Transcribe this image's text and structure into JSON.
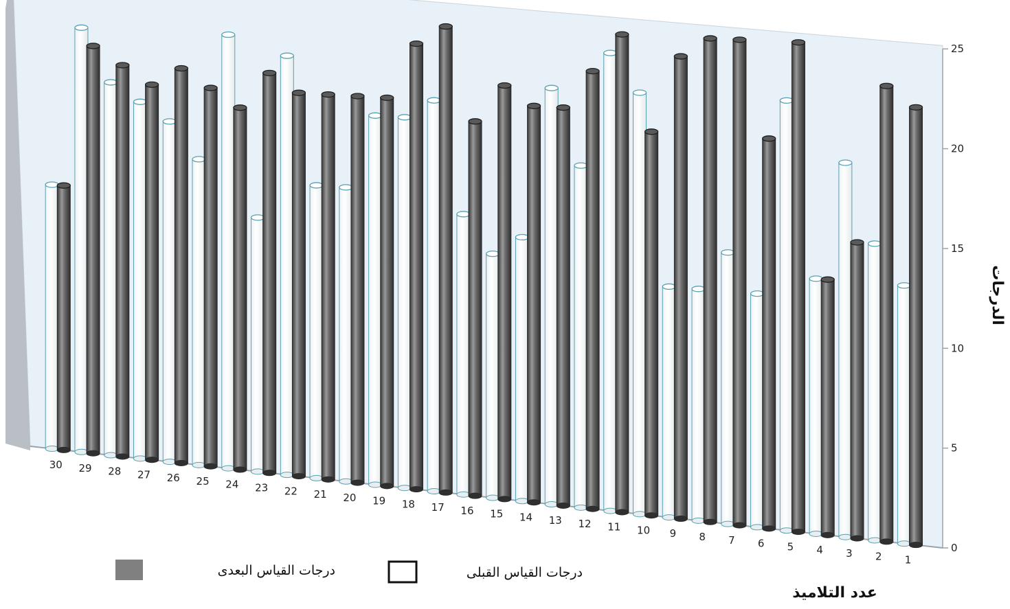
{
  "chart_data": {
    "type": "bar",
    "title": "",
    "xlabel": "عدد التلاميذ",
    "ylabel": "الدرجات",
    "ylim": [
      0,
      25
    ],
    "yticks": [
      "0",
      "5",
      "10",
      "15",
      "20",
      "25"
    ],
    "categories": [
      "1",
      "2",
      "3",
      "4",
      "5",
      "6",
      "7",
      "8",
      "9",
      "10",
      "11",
      "12",
      "13",
      "14",
      "15",
      "16",
      "17",
      "18",
      "19",
      "20",
      "21",
      "22",
      "23",
      "24",
      "25",
      "26",
      "27",
      "28",
      "29",
      "30"
    ],
    "series": [
      {
        "name": "درجات القياس القبلى",
        "color": "#ffffff",
        "values": [
          13,
          15,
          19,
          13,
          22,
          12,
          14,
          12,
          12,
          22,
          24,
          18,
          22,
          14,
          13,
          15,
          21,
          20,
          20,
          16,
          16,
          23,
          14,
          24,
          17,
          19,
          20,
          21,
          24,
          15
        ]
      },
      {
        "name": "درجات القياس البعدى",
        "color": "#666666",
        "values": [
          22,
          23,
          15,
          13,
          25,
          20,
          25,
          25,
          24,
          20,
          25,
          23,
          21,
          21,
          22,
          20,
          25,
          24,
          21,
          21,
          21,
          21,
          22,
          20,
          21,
          22,
          21,
          22,
          23,
          15
        ]
      }
    ],
    "legend": {
      "position": "bottom",
      "items": [
        {
          "label": "درجات القياس البعدى",
          "swatch": "#808080"
        },
        {
          "label": "درجات القياس القبلى",
          "swatch": "#ffffff"
        }
      ]
    },
    "grid": false,
    "background_color": "#e8f1f8",
    "outline_color": "#5aa0b0"
  }
}
